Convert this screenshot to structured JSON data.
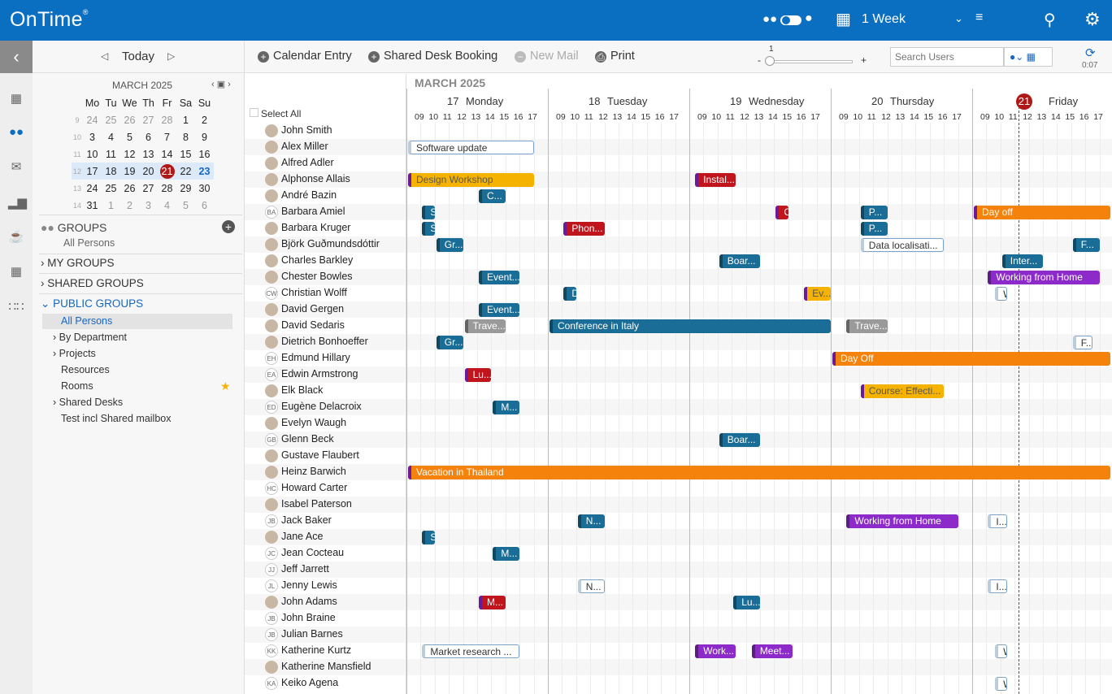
{
  "app": {
    "logo": "OnTime",
    "reg": "®",
    "view": "1 Week"
  },
  "colors": {
    "brand": "#0b6fc1",
    "today": "#b01818"
  },
  "nav": {
    "today": "Today"
  },
  "mini": {
    "title": "MARCH 2025",
    "dows": [
      "Mo",
      "Tu",
      "We",
      "Th",
      "Fr",
      "Sa",
      "Su"
    ],
    "weeks": [
      {
        "wk": "9",
        "days": [
          "24",
          "25",
          "26",
          "27",
          "28",
          "1",
          "2"
        ]
      },
      {
        "wk": "10",
        "days": [
          "3",
          "4",
          "5",
          "6",
          "7",
          "8",
          "9"
        ]
      },
      {
        "wk": "11",
        "days": [
          "10",
          "11",
          "12",
          "13",
          "14",
          "15",
          "16"
        ]
      },
      {
        "wk": "12",
        "days": [
          "17",
          "18",
          "19",
          "20",
          "21",
          "22",
          "23"
        ]
      },
      {
        "wk": "13",
        "days": [
          "24",
          "25",
          "26",
          "27",
          "28",
          "29",
          "30"
        ]
      },
      {
        "wk": "14",
        "days": [
          "31",
          "1",
          "2",
          "3",
          "4",
          "5",
          "6"
        ]
      }
    ]
  },
  "groups": {
    "title": "GROUPS",
    "sub": "All Persons",
    "my": "MY GROUPS",
    "shared": "SHARED GROUPS",
    "public": "PUBLIC GROUPS",
    "items": [
      "All Persons",
      "By Department",
      "Projects",
      "Resources",
      "Rooms",
      "Shared Desks",
      "Test incl Shared mailbox"
    ]
  },
  "toolbar": {
    "calendar_entry": "Calendar Entry",
    "shared_desk": "Shared Desk Booking",
    "new_mail": "New Mail",
    "print": "Print",
    "zoom": "1",
    "minus": "-",
    "plus": "+",
    "search_placeholder": "Search Users",
    "refresh_time": "0:07"
  },
  "calendar": {
    "month": "MARCH 2025",
    "select_all": "Select All",
    "days": [
      {
        "num": "17",
        "name": "Monday"
      },
      {
        "num": "18",
        "name": "Tuesday"
      },
      {
        "num": "19",
        "name": "Wednesday"
      },
      {
        "num": "20",
        "name": "Thursday"
      },
      {
        "num": "21",
        "name": "Friday"
      }
    ],
    "hours": [
      "09",
      "10",
      "11",
      "12",
      "13",
      "14",
      "15",
      "16",
      "17"
    ]
  },
  "people": [
    {
      "name": "John Smith",
      "ini": ""
    },
    {
      "name": "Alex Miller",
      "ini": ""
    },
    {
      "name": "Alfred Adler",
      "ini": ""
    },
    {
      "name": "Alphonse Allais",
      "ini": ""
    },
    {
      "name": "André Bazin",
      "ini": ""
    },
    {
      "name": "Barbara Amiel",
      "ini": "BA"
    },
    {
      "name": "Barbara Kruger",
      "ini": ""
    },
    {
      "name": "Björk Guðmundsdóttir",
      "ini": ""
    },
    {
      "name": "Charles Barkley",
      "ini": ""
    },
    {
      "name": "Chester Bowles",
      "ini": ""
    },
    {
      "name": "Christian Wolff",
      "ini": "CW"
    },
    {
      "name": "David Gergen",
      "ini": ""
    },
    {
      "name": "David Sedaris",
      "ini": ""
    },
    {
      "name": "Dietrich Bonhoeffer",
      "ini": ""
    },
    {
      "name": "Edmund Hillary",
      "ini": "EH"
    },
    {
      "name": "Edwin Armstrong",
      "ini": "EA"
    },
    {
      "name": "Elk Black",
      "ini": ""
    },
    {
      "name": "Eugène Delacroix",
      "ini": "ED"
    },
    {
      "name": "Evelyn Waugh",
      "ini": ""
    },
    {
      "name": "Glenn Beck",
      "ini": "GB"
    },
    {
      "name": "Gustave Flaubert",
      "ini": ""
    },
    {
      "name": "Heinz Barwich",
      "ini": ""
    },
    {
      "name": "Howard Carter",
      "ini": "HC"
    },
    {
      "name": "Isabel Paterson",
      "ini": ""
    },
    {
      "name": "Jack Baker",
      "ini": "JB"
    },
    {
      "name": "Jane Ace",
      "ini": ""
    },
    {
      "name": "Jean Cocteau",
      "ini": "JC"
    },
    {
      "name": "Jeff Jarrett",
      "ini": "JJ"
    },
    {
      "name": "Jenny Lewis",
      "ini": "JL"
    },
    {
      "name": "John Adams",
      "ini": ""
    },
    {
      "name": "John Braine",
      "ini": "JB"
    },
    {
      "name": "Julian Barnes",
      "ini": "JB"
    },
    {
      "name": "Katherine Kurtz",
      "ini": "KK"
    },
    {
      "name": "Katherine Mansfield",
      "ini": ""
    },
    {
      "name": "Keiko Agena",
      "ini": "KA"
    }
  ],
  "events": [
    {
      "row": 1,
      "day": 0,
      "start": 0,
      "len": 9,
      "label": "Software update",
      "kind": "outline"
    },
    {
      "row": 3,
      "day": 0,
      "start": 0,
      "len": 9,
      "label": "Design Workshop",
      "kind": "yellow"
    },
    {
      "row": 3,
      "day": 2,
      "start": 0.3,
      "len": 3,
      "label": "Instal...",
      "kind": "red"
    },
    {
      "row": 4,
      "day": 0,
      "start": 5,
      "len": 2,
      "label": "C...",
      "kind": "blue"
    },
    {
      "row": 5,
      "day": 0,
      "start": 1,
      "len": 1,
      "label": "S",
      "kind": "blue"
    },
    {
      "row": 5,
      "day": 2,
      "start": 6,
      "len": 1,
      "label": "C",
      "kind": "red"
    },
    {
      "row": 5,
      "day": 3,
      "start": 2,
      "len": 2,
      "label": "P...",
      "kind": "blue"
    },
    {
      "row": 5,
      "day": 4,
      "start": 0,
      "len": 12,
      "label": "Day off",
      "kind": "orange"
    },
    {
      "row": 6,
      "day": 0,
      "start": 1,
      "len": 1,
      "label": "S",
      "kind": "blue"
    },
    {
      "row": 6,
      "day": 1,
      "start": 1,
      "len": 3,
      "label": "Phon...",
      "kind": "red"
    },
    {
      "row": 6,
      "day": 3,
      "start": 2,
      "len": 2,
      "label": "P...",
      "kind": "blue"
    },
    {
      "row": 7,
      "day": 0,
      "start": 2,
      "len": 2,
      "label": "Gr...",
      "kind": "blue"
    },
    {
      "row": 7,
      "day": 3,
      "start": 2,
      "len": 6,
      "label": "Data localisati...",
      "kind": "outline"
    },
    {
      "row": 7,
      "day": 4,
      "start": 7,
      "len": 2,
      "label": "F...",
      "kind": "blue"
    },
    {
      "row": 8,
      "day": 2,
      "start": 2,
      "len": 3,
      "label": "Boar...",
      "kind": "blue"
    },
    {
      "row": 8,
      "day": 4,
      "start": 2,
      "len": 3,
      "label": "Inter...",
      "kind": "blue"
    },
    {
      "row": 9,
      "day": 0,
      "start": 5,
      "len": 3,
      "label": "Event...",
      "kind": "blue"
    },
    {
      "row": 9,
      "day": 4,
      "start": 1,
      "len": 8,
      "label": "Working from Home",
      "kind": "purple"
    },
    {
      "row": 10,
      "day": 1,
      "start": 1,
      "len": 1,
      "label": "D",
      "kind": "blue"
    },
    {
      "row": 10,
      "day": 2,
      "start": 8,
      "len": 2,
      "label": "Ev...",
      "kind": "yellow"
    },
    {
      "row": 10,
      "day": 4,
      "start": 1.5,
      "len": 1,
      "label": "W",
      "kind": "outline"
    },
    {
      "row": 11,
      "day": 0,
      "start": 5,
      "len": 3,
      "label": "Event...",
      "kind": "blue"
    },
    {
      "row": 12,
      "day": 0,
      "start": 4,
      "len": 3,
      "label": "Trave...",
      "kind": "gray"
    },
    {
      "row": 12,
      "day": 1,
      "start": 0,
      "len": 20,
      "label": "Conference in Italy",
      "kind": "blue"
    },
    {
      "row": 12,
      "day": 3,
      "start": 1,
      "len": 3,
      "label": "Trave...",
      "kind": "gray"
    },
    {
      "row": 13,
      "day": 0,
      "start": 2,
      "len": 2,
      "label": "Gr...",
      "kind": "blue"
    },
    {
      "row": 13,
      "day": 4,
      "start": 7,
      "len": 1.5,
      "label": "F...",
      "kind": "outline"
    },
    {
      "row": 14,
      "day": 3,
      "start": 0,
      "len": 20,
      "label": "Day Off",
      "kind": "orange"
    },
    {
      "row": 15,
      "day": 0,
      "start": 4,
      "len": 2,
      "label": "Lu...",
      "kind": "red"
    },
    {
      "row": 16,
      "day": 3,
      "start": 2,
      "len": 6,
      "label": "Course: Effecti...",
      "kind": "yellow"
    },
    {
      "row": 17,
      "day": 0,
      "start": 6,
      "len": 2,
      "label": "M...",
      "kind": "blue"
    },
    {
      "row": 19,
      "day": 2,
      "start": 2,
      "len": 3,
      "label": "Boar...",
      "kind": "blue"
    },
    {
      "row": 21,
      "day": 0,
      "start": 0,
      "len": 50,
      "label": "Vacation in Thailand",
      "kind": "orange"
    },
    {
      "row": 24,
      "day": 1,
      "start": 2,
      "len": 2,
      "label": "N...",
      "kind": "blue"
    },
    {
      "row": 24,
      "day": 3,
      "start": 1,
      "len": 8,
      "label": "Working from Home",
      "kind": "purple"
    },
    {
      "row": 24,
      "day": 4,
      "start": 1,
      "len": 1.5,
      "label": "I...",
      "kind": "outline"
    },
    {
      "row": 25,
      "day": 0,
      "start": 1,
      "len": 1,
      "label": "S",
      "kind": "blue"
    },
    {
      "row": 26,
      "day": 0,
      "start": 6,
      "len": 2,
      "label": "M...",
      "kind": "blue"
    },
    {
      "row": 28,
      "day": 1,
      "start": 2,
      "len": 2,
      "label": "N...",
      "kind": "outline"
    },
    {
      "row": 28,
      "day": 4,
      "start": 1,
      "len": 1.5,
      "label": "I...",
      "kind": "outline"
    },
    {
      "row": 29,
      "day": 0,
      "start": 5,
      "len": 2,
      "label": "M...",
      "kind": "red"
    },
    {
      "row": 29,
      "day": 2,
      "start": 3,
      "len": 2,
      "label": "Lu...",
      "kind": "blue"
    },
    {
      "row": 32,
      "day": 0,
      "start": 1,
      "len": 7,
      "label": "Market research ...",
      "kind": "outline"
    },
    {
      "row": 32,
      "day": 2,
      "start": 0.3,
      "len": 3,
      "label": "Work...",
      "kind": "purple"
    },
    {
      "row": 32,
      "day": 2,
      "start": 4.3,
      "len": 3,
      "label": "Meet...",
      "kind": "purple"
    },
    {
      "row": 32,
      "day": 4,
      "start": 1.5,
      "len": 1,
      "label": "W",
      "kind": "outline"
    },
    {
      "row": 34,
      "day": 4,
      "start": 1.5,
      "len": 1,
      "label": "W",
      "kind": "outline"
    }
  ]
}
